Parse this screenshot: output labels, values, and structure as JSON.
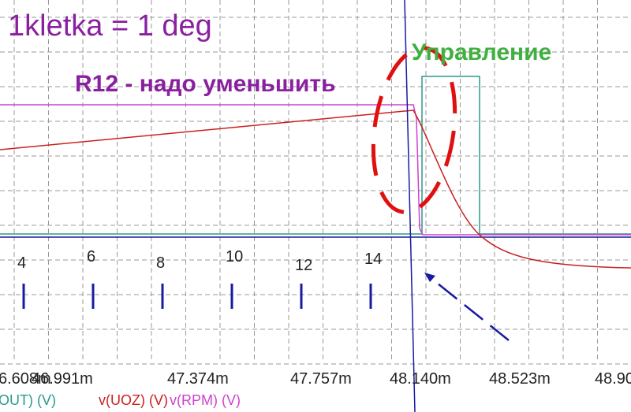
{
  "annotations": {
    "scale_note": "1kletka = 1 deg",
    "control": "Управление",
    "r12_note": "R12 - надо уменьшить"
  },
  "markers": [
    "4",
    "6",
    "8",
    "10",
    "12",
    "14"
  ],
  "x_tick_labels": [
    "6.608m",
    "46.991m",
    "47.374m",
    "47.757m",
    "48.140m",
    "48.523m",
    "48.90"
  ],
  "legend": [
    "OUT) (V)",
    "v(UOZ) (V)",
    "v(RPM) (V)"
  ]
}
